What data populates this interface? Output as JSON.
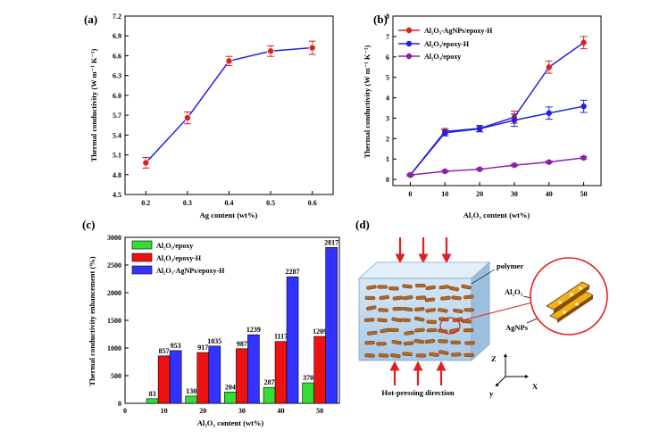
{
  "panels": {
    "a": "(a)",
    "b": "(b)",
    "c": "(c)",
    "d": "(d)"
  },
  "colors": {
    "red": "#e02020",
    "blue": "#2222dd",
    "purple": "#8a22a8",
    "green": "#33dd33",
    "bar_red": "#ee1111",
    "bar_blue": "#3333ff"
  },
  "chart_data": [
    {
      "type": "line",
      "panel": "(a)",
      "xlabel": "Ag content (wt%)",
      "ylabel": "Thermal conductivity (W m⁻¹ K⁻¹)",
      "xlim": [
        0.15,
        0.65
      ],
      "ylim": [
        4.5,
        7.2
      ],
      "x_ticks": [
        "0.2",
        "0.3",
        "0.4",
        "0.5",
        "0.6"
      ],
      "y_ticks": [
        "4.5",
        "4.8",
        "5.1",
        "5.4",
        "5.7",
        "6.0",
        "6.3",
        "6.6",
        "6.9",
        "7.2"
      ],
      "grid": false,
      "series": [
        {
          "x": [
            0.2,
            0.3,
            0.4,
            0.5,
            0.6
          ],
          "y": [
            4.98,
            5.66,
            6.52,
            6.67,
            6.72
          ],
          "err": [
            0.08,
            0.09,
            0.07,
            0.08,
            0.1
          ]
        }
      ]
    },
    {
      "type": "line",
      "panel": "(b)",
      "xlabel": "Al₂O₃ content (wt%)",
      "ylabel": "Thermal conductivity (W m⁻¹ K⁻¹)",
      "xlim": [
        -5,
        55
      ],
      "ylim": [
        -0.3,
        8
      ],
      "x_ticks": [
        "0",
        "10",
        "20",
        "30",
        "40",
        "50"
      ],
      "y_ticks": [
        "0",
        "1",
        "2",
        "3",
        "4",
        "5",
        "6",
        "7",
        "8"
      ],
      "legend_position": "top-left",
      "grid": false,
      "x": [
        0,
        10,
        20,
        30,
        40,
        50
      ],
      "series": [
        {
          "name": "Al₂O₃-AgNPs/epoxy-H",
          "y": [
            0.22,
            2.35,
            2.5,
            3.05,
            5.5,
            6.7
          ],
          "err": [
            0.05,
            0.15,
            0.15,
            0.3,
            0.3,
            0.3
          ]
        },
        {
          "name": "Al₂O₃/epoxy-H",
          "y": [
            0.22,
            2.28,
            2.48,
            2.9,
            3.25,
            3.58
          ],
          "err": [
            0.05,
            0.15,
            0.15,
            0.3,
            0.3,
            0.3
          ]
        },
        {
          "name": "Al₂O₃/epoxy",
          "y": [
            0.22,
            0.4,
            0.5,
            0.7,
            0.85,
            1.06
          ],
          "err": [
            0.03,
            0.04,
            0.04,
            0.05,
            0.05,
            0.06
          ]
        }
      ]
    },
    {
      "type": "bar",
      "panel": "(c)",
      "xlabel": "Al₂O₃ content (wt%)",
      "ylabel": "Thermal conductivity enhancement (%)",
      "xlim": [
        0,
        55
      ],
      "ylim": [
        0,
        3000
      ],
      "x_ticks": [
        "0",
        "10",
        "20",
        "30",
        "40",
        "50"
      ],
      "y_ticks": [
        "0",
        "500",
        "1000",
        "1500",
        "2000",
        "2500",
        "3000"
      ],
      "legend_position": "top-left",
      "grid": false,
      "categories": [
        "10",
        "20",
        "30",
        "40",
        "50"
      ],
      "series": [
        {
          "name": "Al₂O₃/epoxy",
          "values": [
            83,
            130,
            204,
            287,
            370
          ],
          "labels": [
            "83",
            "130",
            "204",
            "287",
            "370"
          ]
        },
        {
          "name": "Al₂O₃/epoxy-H",
          "values": [
            857,
            917,
            987,
            1117,
            1209
          ],
          "labels": [
            "857",
            "917",
            "987",
            "1117",
            "1209"
          ]
        },
        {
          "name": "Al₂O₃-AgNPs/epoxy-H",
          "values": [
            953,
            1035,
            1239,
            2287,
            2817
          ],
          "labels": [
            "953",
            "1035",
            "1239",
            "2287",
            "2817"
          ]
        }
      ]
    }
  ],
  "diagram": {
    "polymer": "polymer",
    "al2o3": "Al₂O₃",
    "agnps": "AgNPs",
    "direction": "Hot-pressing direction",
    "axis_z": "Z",
    "axis_x": "X",
    "axis_y": "y"
  }
}
